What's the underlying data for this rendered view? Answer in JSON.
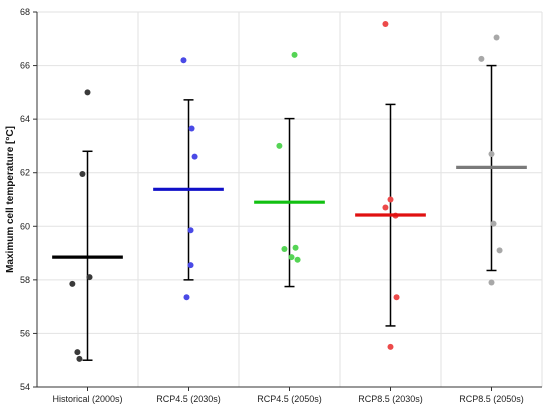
{
  "chart_data": {
    "type": "scatter",
    "ylabel": "Maximum cell temperature [°C]",
    "xlabel": "",
    "ylim": [
      54,
      68
    ],
    "yticks": [
      54,
      56,
      58,
      60,
      62,
      64,
      66,
      68
    ],
    "grid": true,
    "categories": [
      "Historical (2000s)",
      "RCP4.5 (2030s)",
      "RCP4.5 (2050s)",
      "RCP8.5 (2030s)",
      "RCP8.5 (2050s)"
    ],
    "series": [
      {
        "category": "Historical (2000s)",
        "color": "#000000",
        "point_color": "#3a3a3a",
        "mean": 58.85,
        "error_low": 55.0,
        "error_high": 62.8,
        "points": [
          {
            "x_jitter": 0.0,
            "y": 65.0
          },
          {
            "x_jitter": -0.05,
            "y": 61.95
          },
          {
            "x_jitter": 0.02,
            "y": 58.1
          },
          {
            "x_jitter": -0.15,
            "y": 57.85
          },
          {
            "x_jitter": -0.1,
            "y": 55.3
          },
          {
            "x_jitter": -0.08,
            "y": 55.05
          }
        ]
      },
      {
        "category": "RCP4.5 (2030s)",
        "color": "#1010c8",
        "point_color": "#4a4ae6",
        "mean": 61.38,
        "error_low": 58.0,
        "error_high": 64.72,
        "points": [
          {
            "x_jitter": -0.05,
            "y": 66.2
          },
          {
            "x_jitter": 0.03,
            "y": 63.65
          },
          {
            "x_jitter": 0.06,
            "y": 62.6
          },
          {
            "x_jitter": 0.02,
            "y": 59.85
          },
          {
            "x_jitter": 0.02,
            "y": 58.55
          },
          {
            "x_jitter": -0.02,
            "y": 57.35
          }
        ]
      },
      {
        "category": "RCP4.5 (2050s)",
        "color": "#11c011",
        "point_color": "#55d455",
        "mean": 60.9,
        "error_low": 57.75,
        "error_high": 64.02,
        "points": [
          {
            "x_jitter": 0.05,
            "y": 66.4
          },
          {
            "x_jitter": -0.1,
            "y": 63.0
          },
          {
            "x_jitter": 0.06,
            "y": 59.2
          },
          {
            "x_jitter": -0.05,
            "y": 59.15
          },
          {
            "x_jitter": 0.02,
            "y": 58.85
          },
          {
            "x_jitter": 0.08,
            "y": 58.75
          }
        ]
      },
      {
        "category": "RCP8.5 (2030s)",
        "color": "#e01010",
        "point_color": "#ec4a4a",
        "mean": 60.42,
        "error_low": 56.28,
        "error_high": 64.55,
        "points": [
          {
            "x_jitter": -0.05,
            "y": 67.55
          },
          {
            "x_jitter": 0.0,
            "y": 61.0
          },
          {
            "x_jitter": -0.05,
            "y": 60.7
          },
          {
            "x_jitter": 0.05,
            "y": 60.4
          },
          {
            "x_jitter": 0.06,
            "y": 57.35
          },
          {
            "x_jitter": 0.0,
            "y": 55.5
          }
        ]
      },
      {
        "category": "RCP8.5 (2050s)",
        "color": "#7a7a7a",
        "point_color": "#a8a8a8",
        "mean": 62.2,
        "error_low": 58.35,
        "error_high": 66.0,
        "points": [
          {
            "x_jitter": 0.05,
            "y": 67.05
          },
          {
            "x_jitter": -0.1,
            "y": 66.25
          },
          {
            "x_jitter": 0.0,
            "y": 62.7
          },
          {
            "x_jitter": 0.02,
            "y": 60.1
          },
          {
            "x_jitter": 0.08,
            "y": 59.1
          },
          {
            "x_jitter": 0.0,
            "y": 57.9
          }
        ]
      }
    ]
  }
}
